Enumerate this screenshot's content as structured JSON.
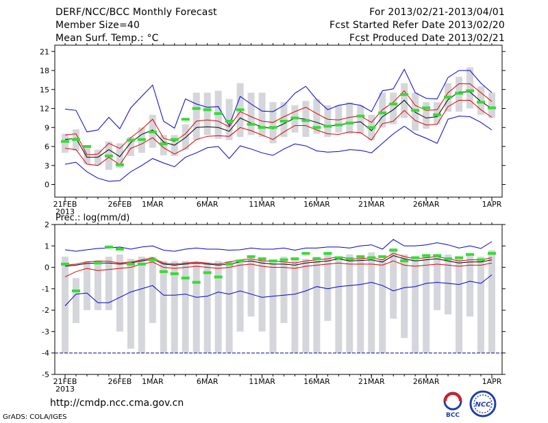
{
  "header": {
    "title": "DERF/NCC/BCC Monthly Forecast",
    "member_size": "Member Size=40",
    "variable": "Mean Surf. Temp.: °C",
    "period": "For 2013/02/21-2013/04/01",
    "fcst_started": "Fcst Started Refer Date 2013/02/20",
    "fcst_produced": "Fcst Produced Date 2013/02/21"
  },
  "footer": {
    "url": "http://cmdp.ncc.cma.gov.cn",
    "credit": "GrADS: COLA/IGES",
    "logo_left": "BCC",
    "logo_right": "NCC"
  },
  "colors": {
    "box": "#d5d6db",
    "mean": "#000000",
    "sigma": "#dd0000",
    "envelope": "#0000cc",
    "obs": "#33dd33",
    "floor": "#3333aa"
  },
  "chart_data": [
    {
      "type": "line",
      "title": "Mean Surf. Temp.: °C",
      "ylim": [
        -2,
        22
      ],
      "yticks": [
        0,
        3,
        6,
        9,
        12,
        15,
        18,
        21
      ],
      "x": [
        "2/21",
        "2/22",
        "2/23",
        "2/24",
        "2/25",
        "2/26",
        "2/27",
        "2/28",
        "3/1",
        "3/2",
        "3/3",
        "3/4",
        "3/5",
        "3/6",
        "3/7",
        "3/8",
        "3/9",
        "3/10",
        "3/11",
        "3/12",
        "3/13",
        "3/14",
        "3/15",
        "3/16",
        "3/17",
        "3/18",
        "3/19",
        "3/20",
        "3/21",
        "3/22",
        "3/23",
        "3/24",
        "3/25",
        "3/26",
        "3/27",
        "3/28",
        "3/29",
        "3/30",
        "3/31",
        "4/1"
      ],
      "xticks": [
        {
          "index": 0,
          "label": "21FEB",
          "label2": "2013"
        },
        {
          "index": 5,
          "label": "26FEB"
        },
        {
          "index": 8,
          "label": "1MAR"
        },
        {
          "index": 13,
          "label": "6MAR"
        },
        {
          "index": 18,
          "label": "11MAR"
        },
        {
          "index": 23,
          "label": "16MAR"
        },
        {
          "index": 28,
          "label": "21MAR"
        },
        {
          "index": 33,
          "label": "26MAR"
        },
        {
          "index": 39,
          "label": "1APR"
        }
      ],
      "series": [
        {
          "name": "ensemble max",
          "values": [
            11.9,
            11.7,
            8.3,
            8.6,
            10.6,
            8.8,
            12.1,
            13.9,
            15.7,
            10.0,
            8.9,
            13.5,
            12.7,
            12.2,
            12.3,
            9.3,
            13.9,
            12.7,
            11.6,
            11.5,
            12.5,
            14.4,
            15.5,
            13.4,
            11.8,
            12.5,
            12.8,
            12.5,
            11.5,
            14.8,
            15.1,
            18.2,
            14.5,
            13.6,
            13.5,
            16.9,
            18.0,
            18.0,
            16.0,
            14.5
          ]
        },
        {
          "name": "mean + sd",
          "values": [
            7.8,
            8.0,
            4.7,
            4.8,
            6.5,
            5.7,
            7.4,
            8.7,
            10.3,
            7.3,
            6.8,
            8.0,
            10.0,
            10.2,
            10.0,
            9.1,
            11.5,
            10.7,
            10.0,
            9.8,
            10.7,
            11.5,
            12.2,
            11.2,
            10.3,
            10.2,
            10.6,
            10.8,
            9.8,
            11.8,
            13.0,
            14.8,
            12.5,
            11.7,
            11.8,
            14.5,
            15.9,
            15.9,
            14.5,
            13.1
          ]
        },
        {
          "name": "ensemble mean",
          "values": [
            7.1,
            7.3,
            4.3,
            4.3,
            5.5,
            4.4,
            6.6,
            7.9,
            8.6,
            6.7,
            6.2,
            7.4,
            9.0,
            9.1,
            9.0,
            8.4,
            10.5,
            9.7,
            9.1,
            8.8,
            9.6,
            10.5,
            10.3,
            9.8,
            9.2,
            9.4,
            9.7,
            9.9,
            8.5,
            10.7,
            11.8,
            13.3,
            11.4,
            10.5,
            10.7,
            13.4,
            14.6,
            14.6,
            13.1,
            12.0
          ]
        },
        {
          "name": "mean - sd",
          "values": [
            5.7,
            5.5,
            3.2,
            3.0,
            4.3,
            3.1,
            5.7,
            6.4,
            7.4,
            5.8,
            4.8,
            5.7,
            7.1,
            7.6,
            7.7,
            7.6,
            9.0,
            8.5,
            7.8,
            7.1,
            8.3,
            9.3,
            9.3,
            8.6,
            8.0,
            7.9,
            8.3,
            8.2,
            7.0,
            9.6,
            10.0,
            11.7,
            10.1,
            9.4,
            9.5,
            12.3,
            13.3,
            13.3,
            11.8,
            10.6
          ]
        },
        {
          "name": "ensemble min",
          "values": [
            3.2,
            3.5,
            2.0,
            1.0,
            0.5,
            0.6,
            2.0,
            3.0,
            4.1,
            3.4,
            2.8,
            4.3,
            5.0,
            5.8,
            6.0,
            4.1,
            6.1,
            5.6,
            5.0,
            4.6,
            5.6,
            6.4,
            6.1,
            5.3,
            5.1,
            5.2,
            5.5,
            5.4,
            5.0,
            6.5,
            8.0,
            9.2,
            8.0,
            7.3,
            6.5,
            10.3,
            10.8,
            10.7,
            9.8,
            8.6
          ]
        }
      ],
      "box_ranges": [
        [
          5,
          8
        ],
        [
          5.3,
          8.7
        ],
        [
          3.2,
          6.2
        ],
        [
          3,
          5.5
        ],
        [
          2.3,
          6.8
        ],
        [
          2.6,
          6.5
        ],
        [
          4.5,
          7.5
        ],
        [
          5,
          9
        ],
        [
          5.8,
          11
        ],
        [
          4.6,
          7.8
        ],
        [
          4.5,
          7.8
        ],
        [
          5.5,
          9.5
        ],
        [
          7,
          14.5
        ],
        [
          7.8,
          14.5
        ],
        [
          7.2,
          14.8
        ],
        [
          7,
          13.5
        ],
        [
          7.5,
          16
        ],
        [
          7.8,
          14.5
        ],
        [
          7.5,
          14.5
        ],
        [
          6.5,
          13
        ],
        [
          7.5,
          13
        ],
        [
          8.2,
          12.5
        ],
        [
          7.5,
          13.2
        ],
        [
          8,
          13.5
        ],
        [
          7.5,
          12.5
        ],
        [
          8.2,
          12.5
        ],
        [
          8,
          13
        ],
        [
          8,
          12.5
        ],
        [
          7,
          11
        ],
        [
          9,
          14.5
        ],
        [
          9.5,
          14.5
        ],
        [
          10.5,
          16
        ],
        [
          8.5,
          14.5
        ],
        [
          8.8,
          13
        ],
        [
          9.5,
          13
        ],
        [
          11.5,
          16
        ],
        [
          11.5,
          17
        ],
        [
          12,
          18.5
        ],
        [
          11,
          15.5
        ],
        [
          10.5,
          14.5
        ]
      ],
      "observed": [
        6.8,
        7.1,
        6.0,
        null,
        4.5,
        3.1,
        7.0,
        7.1,
        8.3,
        6.4,
        7.1,
        10.3,
        12.0,
        11.8,
        11.2,
        10.0,
        11.8,
        9.5,
        9.0,
        9.0,
        10.0,
        10.5,
        10.1,
        9.0,
        9.2,
        9.4,
        9.7,
        10.8,
        9.0,
        11.3,
        12.7,
        14.2,
        11.7,
        12.1,
        11.0,
        13.8,
        14.4,
        14.8,
        13.0,
        12.1
      ]
    },
    {
      "type": "line",
      "title": "Prec.: log(mm/d)",
      "ylim": [
        -5,
        2
      ],
      "yticks": [
        -5,
        -4,
        -3,
        -2,
        -1,
        0,
        1,
        2
      ],
      "x": [
        "2/21",
        "2/22",
        "2/23",
        "2/24",
        "2/25",
        "2/26",
        "2/27",
        "2/28",
        "3/1",
        "3/2",
        "3/3",
        "3/4",
        "3/5",
        "3/6",
        "3/7",
        "3/8",
        "3/9",
        "3/10",
        "3/11",
        "3/12",
        "3/13",
        "3/14",
        "3/15",
        "3/16",
        "3/17",
        "3/18",
        "3/19",
        "3/20",
        "3/21",
        "3/22",
        "3/23",
        "3/24",
        "3/25",
        "3/26",
        "3/27",
        "3/28",
        "3/29",
        "3/30",
        "3/31",
        "4/1"
      ],
      "xticks": [
        {
          "index": 0,
          "label": "21FEB",
          "label2": "2013"
        },
        {
          "index": 5,
          "label": "26FEB"
        },
        {
          "index": 8,
          "label": "1MAR"
        },
        {
          "index": 13,
          "label": "6MAR"
        },
        {
          "index": 18,
          "label": "11MAR"
        },
        {
          "index": 23,
          "label": "16MAR"
        },
        {
          "index": 28,
          "label": "21MAR"
        },
        {
          "index": 33,
          "label": "26MAR"
        },
        {
          "index": 39,
          "label": "1APR"
        }
      ],
      "series": [
        {
          "name": "ensemble max",
          "values": [
            0.82,
            0.75,
            0.82,
            0.88,
            0.9,
            0.95,
            0.85,
            0.95,
            1.0,
            0.8,
            0.75,
            0.85,
            0.9,
            0.85,
            0.85,
            0.8,
            0.82,
            0.9,
            0.85,
            0.85,
            0.9,
            0.8,
            0.9,
            0.9,
            0.95,
            0.95,
            0.9,
            1.0,
            1.05,
            0.85,
            1.3,
            1.0,
            1.0,
            1.05,
            1.15,
            1.05,
            0.9,
            1.0,
            0.88,
            1.2
          ]
        },
        {
          "name": "mean + sd",
          "values": [
            0.1,
            0.15,
            0.25,
            0.3,
            0.28,
            0.2,
            0.25,
            0.35,
            0.45,
            0.2,
            0.15,
            0.2,
            0.25,
            0.2,
            0.15,
            0.25,
            0.35,
            0.4,
            0.3,
            0.3,
            0.25,
            0.2,
            0.3,
            0.35,
            0.4,
            0.5,
            0.4,
            0.4,
            0.45,
            0.35,
            0.65,
            0.5,
            0.4,
            0.45,
            0.5,
            0.4,
            0.3,
            0.35,
            0.35,
            0.45
          ]
        },
        {
          "name": "ensemble mean",
          "values": [
            0.05,
            0.1,
            0.18,
            0.2,
            0.2,
            0.15,
            0.2,
            0.3,
            0.38,
            0.15,
            0.1,
            0.15,
            0.2,
            0.15,
            0.1,
            0.15,
            0.25,
            0.3,
            0.2,
            0.15,
            0.15,
            0.1,
            0.2,
            0.25,
            0.3,
            0.4,
            0.3,
            0.32,
            0.35,
            0.25,
            0.55,
            0.4,
            0.3,
            0.35,
            0.4,
            0.3,
            0.2,
            0.25,
            0.25,
            0.35
          ]
        },
        {
          "name": "mean - sd",
          "values": [
            -0.45,
            -0.2,
            -0.05,
            -0.15,
            -0.1,
            -0.05,
            0.0,
            0.15,
            0.25,
            0.0,
            -0.05,
            0.0,
            0.05,
            0.0,
            -0.05,
            0.0,
            0.1,
            0.15,
            0.05,
            0.0,
            0.0,
            -0.05,
            0.05,
            0.1,
            0.15,
            0.2,
            0.15,
            0.15,
            0.15,
            0.1,
            0.3,
            0.1,
            0.05,
            0.1,
            0.15,
            0.1,
            0.05,
            0.1,
            0.1,
            0.2
          ]
        },
        {
          "name": "ensemble min",
          "values": [
            -1.8,
            -1.25,
            -1.2,
            -1.65,
            -1.65,
            -1.4,
            -1.15,
            -1.0,
            -0.85,
            -1.3,
            -1.3,
            -1.25,
            -1.4,
            -1.35,
            -1.15,
            -1.25,
            -1.1,
            -1.25,
            -1.4,
            -1.35,
            -1.3,
            -1.25,
            -1.1,
            -0.9,
            -1.0,
            -0.9,
            -0.85,
            -0.8,
            -0.7,
            -0.85,
            -1.1,
            -0.95,
            -0.9,
            -0.75,
            -0.7,
            -0.75,
            -0.8,
            -0.65,
            -0.75,
            -0.35
          ]
        }
      ],
      "box_ranges": [
        [
          -4,
          0.5
        ],
        [
          -2.6,
          -0.5
        ],
        [
          -2,
          0.3
        ],
        [
          -2,
          0.3
        ],
        [
          -2,
          0.5
        ],
        [
          -3,
          0.6
        ],
        [
          -3.8,
          0.4
        ],
        [
          -4,
          0.5
        ],
        [
          -2.6,
          0.5
        ],
        [
          -4,
          0.3
        ],
        [
          -4,
          0.3
        ],
        [
          -4,
          0.3
        ],
        [
          -4,
          0.2
        ],
        [
          -4,
          0.2
        ],
        [
          -4,
          0.3
        ],
        [
          -4,
          0.3
        ],
        [
          -3,
          0.3
        ],
        [
          -2.3,
          0.4
        ],
        [
          -3,
          0.4
        ],
        [
          -4,
          0.3
        ],
        [
          -2.6,
          0.5
        ],
        [
          -4,
          0.4
        ],
        [
          -4,
          0.4
        ],
        [
          -4,
          0.5
        ],
        [
          -2.5,
          0.6
        ],
        [
          -4,
          0.5
        ],
        [
          -4,
          0.6
        ],
        [
          -4,
          0.5
        ],
        [
          -4,
          0.7
        ],
        [
          -4,
          0.4
        ],
        [
          -2.4,
          0.9
        ],
        [
          -3.3,
          0.6
        ],
        [
          -4,
          0.5
        ],
        [
          -4,
          0.6
        ],
        [
          -2,
          0.6
        ],
        [
          -2.2,
          0.6
        ],
        [
          -4,
          0.5
        ],
        [
          -2.3,
          0.6
        ],
        [
          -4,
          0.5
        ],
        [
          -4,
          0.8
        ]
      ],
      "observed": [
        0.15,
        -1.1,
        null,
        0.2,
        0.95,
        0.85,
        0.15,
        0.15,
        0.35,
        -0.2,
        -0.3,
        -0.5,
        -0.7,
        -0.25,
        -0.45,
        0.15,
        0.3,
        0.5,
        0.4,
        0.3,
        0.35,
        0.4,
        0.65,
        0.4,
        0.65,
        0.45,
        0.4,
        0.5,
        0.45,
        0.5,
        0.8,
        0.3,
        0.45,
        0.55,
        0.55,
        0.4,
        0.45,
        0.6,
        0.35,
        0.65
      ],
      "floor": -4
    }
  ]
}
